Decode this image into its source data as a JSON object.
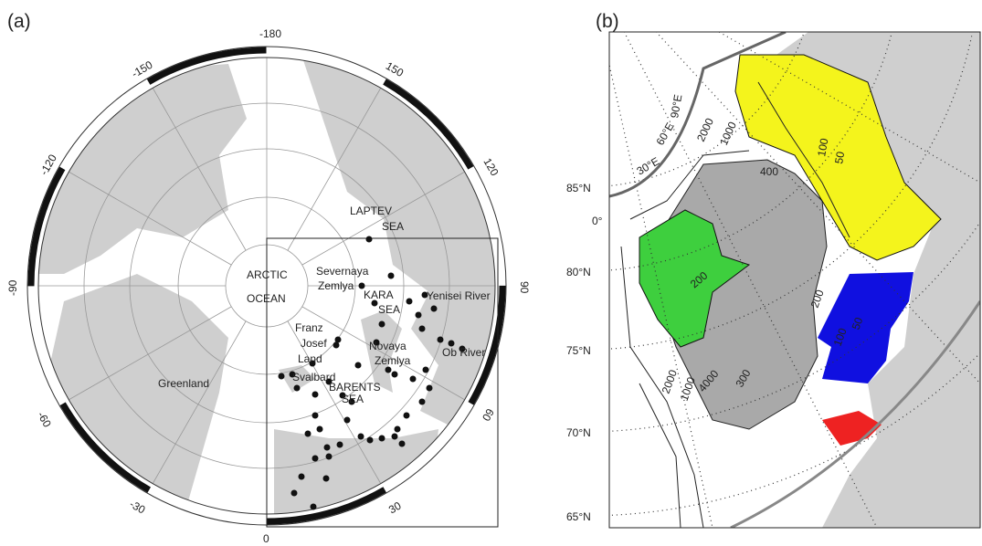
{
  "panel_a": {
    "label": "(a)",
    "longitudes": [
      "-180",
      "150",
      "120",
      "90",
      "60",
      "30",
      "0",
      "-30",
      "-60",
      "-90",
      "-120",
      "-150"
    ],
    "places": [
      "ARCTIC",
      "OCEAN",
      "LAPTEV",
      "SEA",
      "Severnaya",
      "Zemlya",
      "KARA",
      "SEA",
      "Yenisei River",
      "Franz",
      "Josef",
      "Land",
      "Novaya",
      "Zemlya",
      "Ob River",
      "Svalbard",
      "BARENTS",
      "SEA",
      "Greenland"
    ]
  },
  "panel_b": {
    "label": "(b)",
    "latitudes": [
      "85°N",
      "80°N",
      "75°N",
      "70°N",
      "65°N"
    ],
    "meridians": [
      "0°",
      "30°E",
      "60°E",
      "90°E"
    ],
    "contours": [
      "2000",
      "1000",
      "400",
      "100",
      "50",
      "200",
      "200",
      "100",
      "50",
      "2000",
      "1000",
      "4000",
      "300"
    ]
  }
}
